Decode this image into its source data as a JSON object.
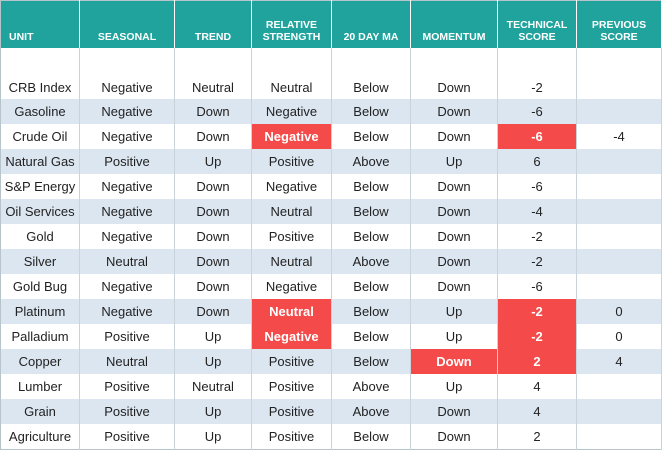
{
  "table": {
    "header": [
      "UNIT",
      "SEASONAL",
      "TREND",
      "RELATIVE STRENGTH",
      "20 DAY MA",
      "MOMENTUM",
      "TECHNICAL SCORE",
      "PREVIOUS SCORE"
    ],
    "rows": [
      [
        "CRB Index",
        "Negative",
        "Neutral",
        "Neutral",
        "Below",
        "Down",
        "-2",
        null
      ],
      [
        "Gasoline",
        "Negative",
        "Down",
        "Negative",
        "Below",
        "Down",
        "-6",
        null
      ],
      [
        "Crude Oil",
        "Negative",
        "Down",
        "Negative",
        "Below",
        "Down",
        "-6",
        "-4"
      ],
      [
        "Natural Gas",
        "Positive",
        "Up",
        "Positive",
        "Above",
        "Up",
        "6",
        null
      ],
      [
        "S&P Energy",
        "Negative",
        "Down",
        "Negative",
        "Below",
        "Down",
        "-6",
        null
      ],
      [
        "Oil Services",
        "Negative",
        "Down",
        "Neutral",
        "Below",
        "Down",
        "-4",
        null
      ],
      [
        "Gold",
        "Negative",
        "Down",
        "Positive",
        "Below",
        "Down",
        "-2",
        null
      ],
      [
        "Silver",
        "Neutral",
        "Down",
        "Neutral",
        "Above",
        "Down",
        "-2",
        null
      ],
      [
        "Gold Bug",
        "Negative",
        "Down",
        "Negative",
        "Below",
        "Down",
        "-6",
        null
      ],
      [
        "Platinum",
        "Negative",
        "Down",
        "Neutral",
        "Below",
        "Up",
        "-2",
        "0"
      ],
      [
        "Palladium",
        "Positive",
        "Up",
        "Negative",
        "Below",
        "Up",
        "-2",
        "0"
      ],
      [
        "Copper",
        "Neutral",
        "Up",
        "Positive",
        "Below",
        "Down",
        "2",
        "4"
      ],
      [
        "Lumber",
        "Positive",
        "Neutral",
        "Positive",
        "Above",
        "Up",
        "4",
        null
      ],
      [
        "Grain",
        "Positive",
        "Up",
        "Positive",
        "Above",
        "Down",
        "4",
        null
      ],
      [
        "Agriculture",
        "Positive",
        "Up",
        "Positive",
        "Below",
        "Down",
        "2",
        null
      ]
    ]
  }
}
